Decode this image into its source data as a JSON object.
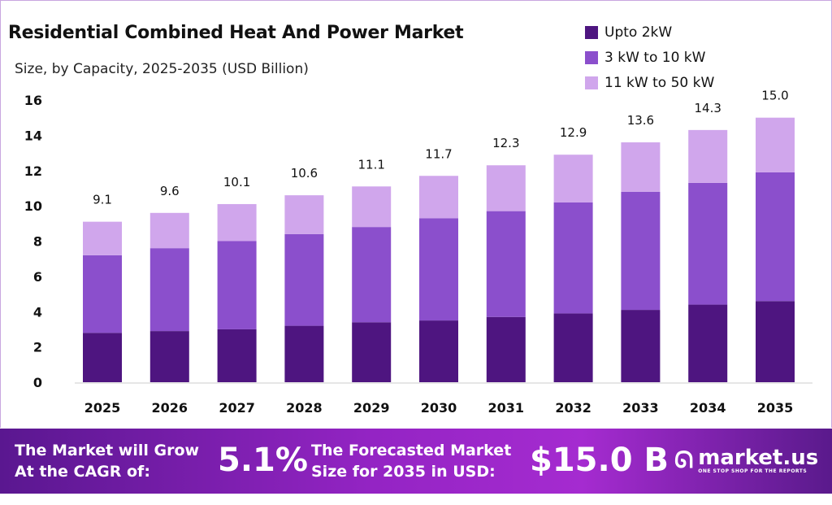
{
  "chart_data": {
    "type": "bar",
    "stacked": true,
    "title": "Residential Combined Heat And Power Market",
    "subtitle": "Size, by Capacity, 2025-2035 (USD Billion)",
    "xlabel": "",
    "ylabel": "",
    "ylim": [
      0,
      16
    ],
    "yticks": [
      0,
      2,
      4,
      6,
      8,
      10,
      12,
      14,
      16
    ],
    "grid": false,
    "legend_position": "top-right",
    "categories": [
      "2025",
      "2026",
      "2027",
      "2028",
      "2029",
      "2030",
      "2031",
      "2032",
      "2033",
      "2034",
      "2035"
    ],
    "series": [
      {
        "name": "Upto 2kW",
        "color": "#4e1580",
        "values": [
          2.8,
          2.9,
          3.0,
          3.2,
          3.4,
          3.5,
          3.7,
          3.9,
          4.1,
          4.4,
          4.6
        ]
      },
      {
        "name": "3 kW to 10 kW",
        "color": "#8b4fcc",
        "values": [
          4.4,
          4.7,
          5.0,
          5.2,
          5.4,
          5.8,
          6.0,
          6.3,
          6.7,
          6.9,
          7.3
        ]
      },
      {
        "name": "11 kW to 50 kW",
        "color": "#d0a6ec",
        "values": [
          1.9,
          2.0,
          2.1,
          2.2,
          2.3,
          2.4,
          2.6,
          2.7,
          2.8,
          3.0,
          3.1
        ]
      }
    ],
    "totals": [
      "9.1",
      "9.6",
      "10.1",
      "10.6",
      "11.1",
      "11.7",
      "12.3",
      "12.9",
      "13.6",
      "14.3",
      "15.0"
    ]
  },
  "banner": {
    "cagr_label_1": "The Market will Grow",
    "cagr_label_2": "At the CAGR of:",
    "cagr_value": "5.1%",
    "forecast_label_1": "The Forecasted Market",
    "forecast_label_2": "Size for 2035 in USD:",
    "forecast_value": "$15.0 B",
    "logo_name": "market.us",
    "logo_tagline": "ONE STOP SHOP FOR THE REPORTS",
    "colors": {
      "start": "#5a1790",
      "end": "#a52bd0"
    }
  }
}
